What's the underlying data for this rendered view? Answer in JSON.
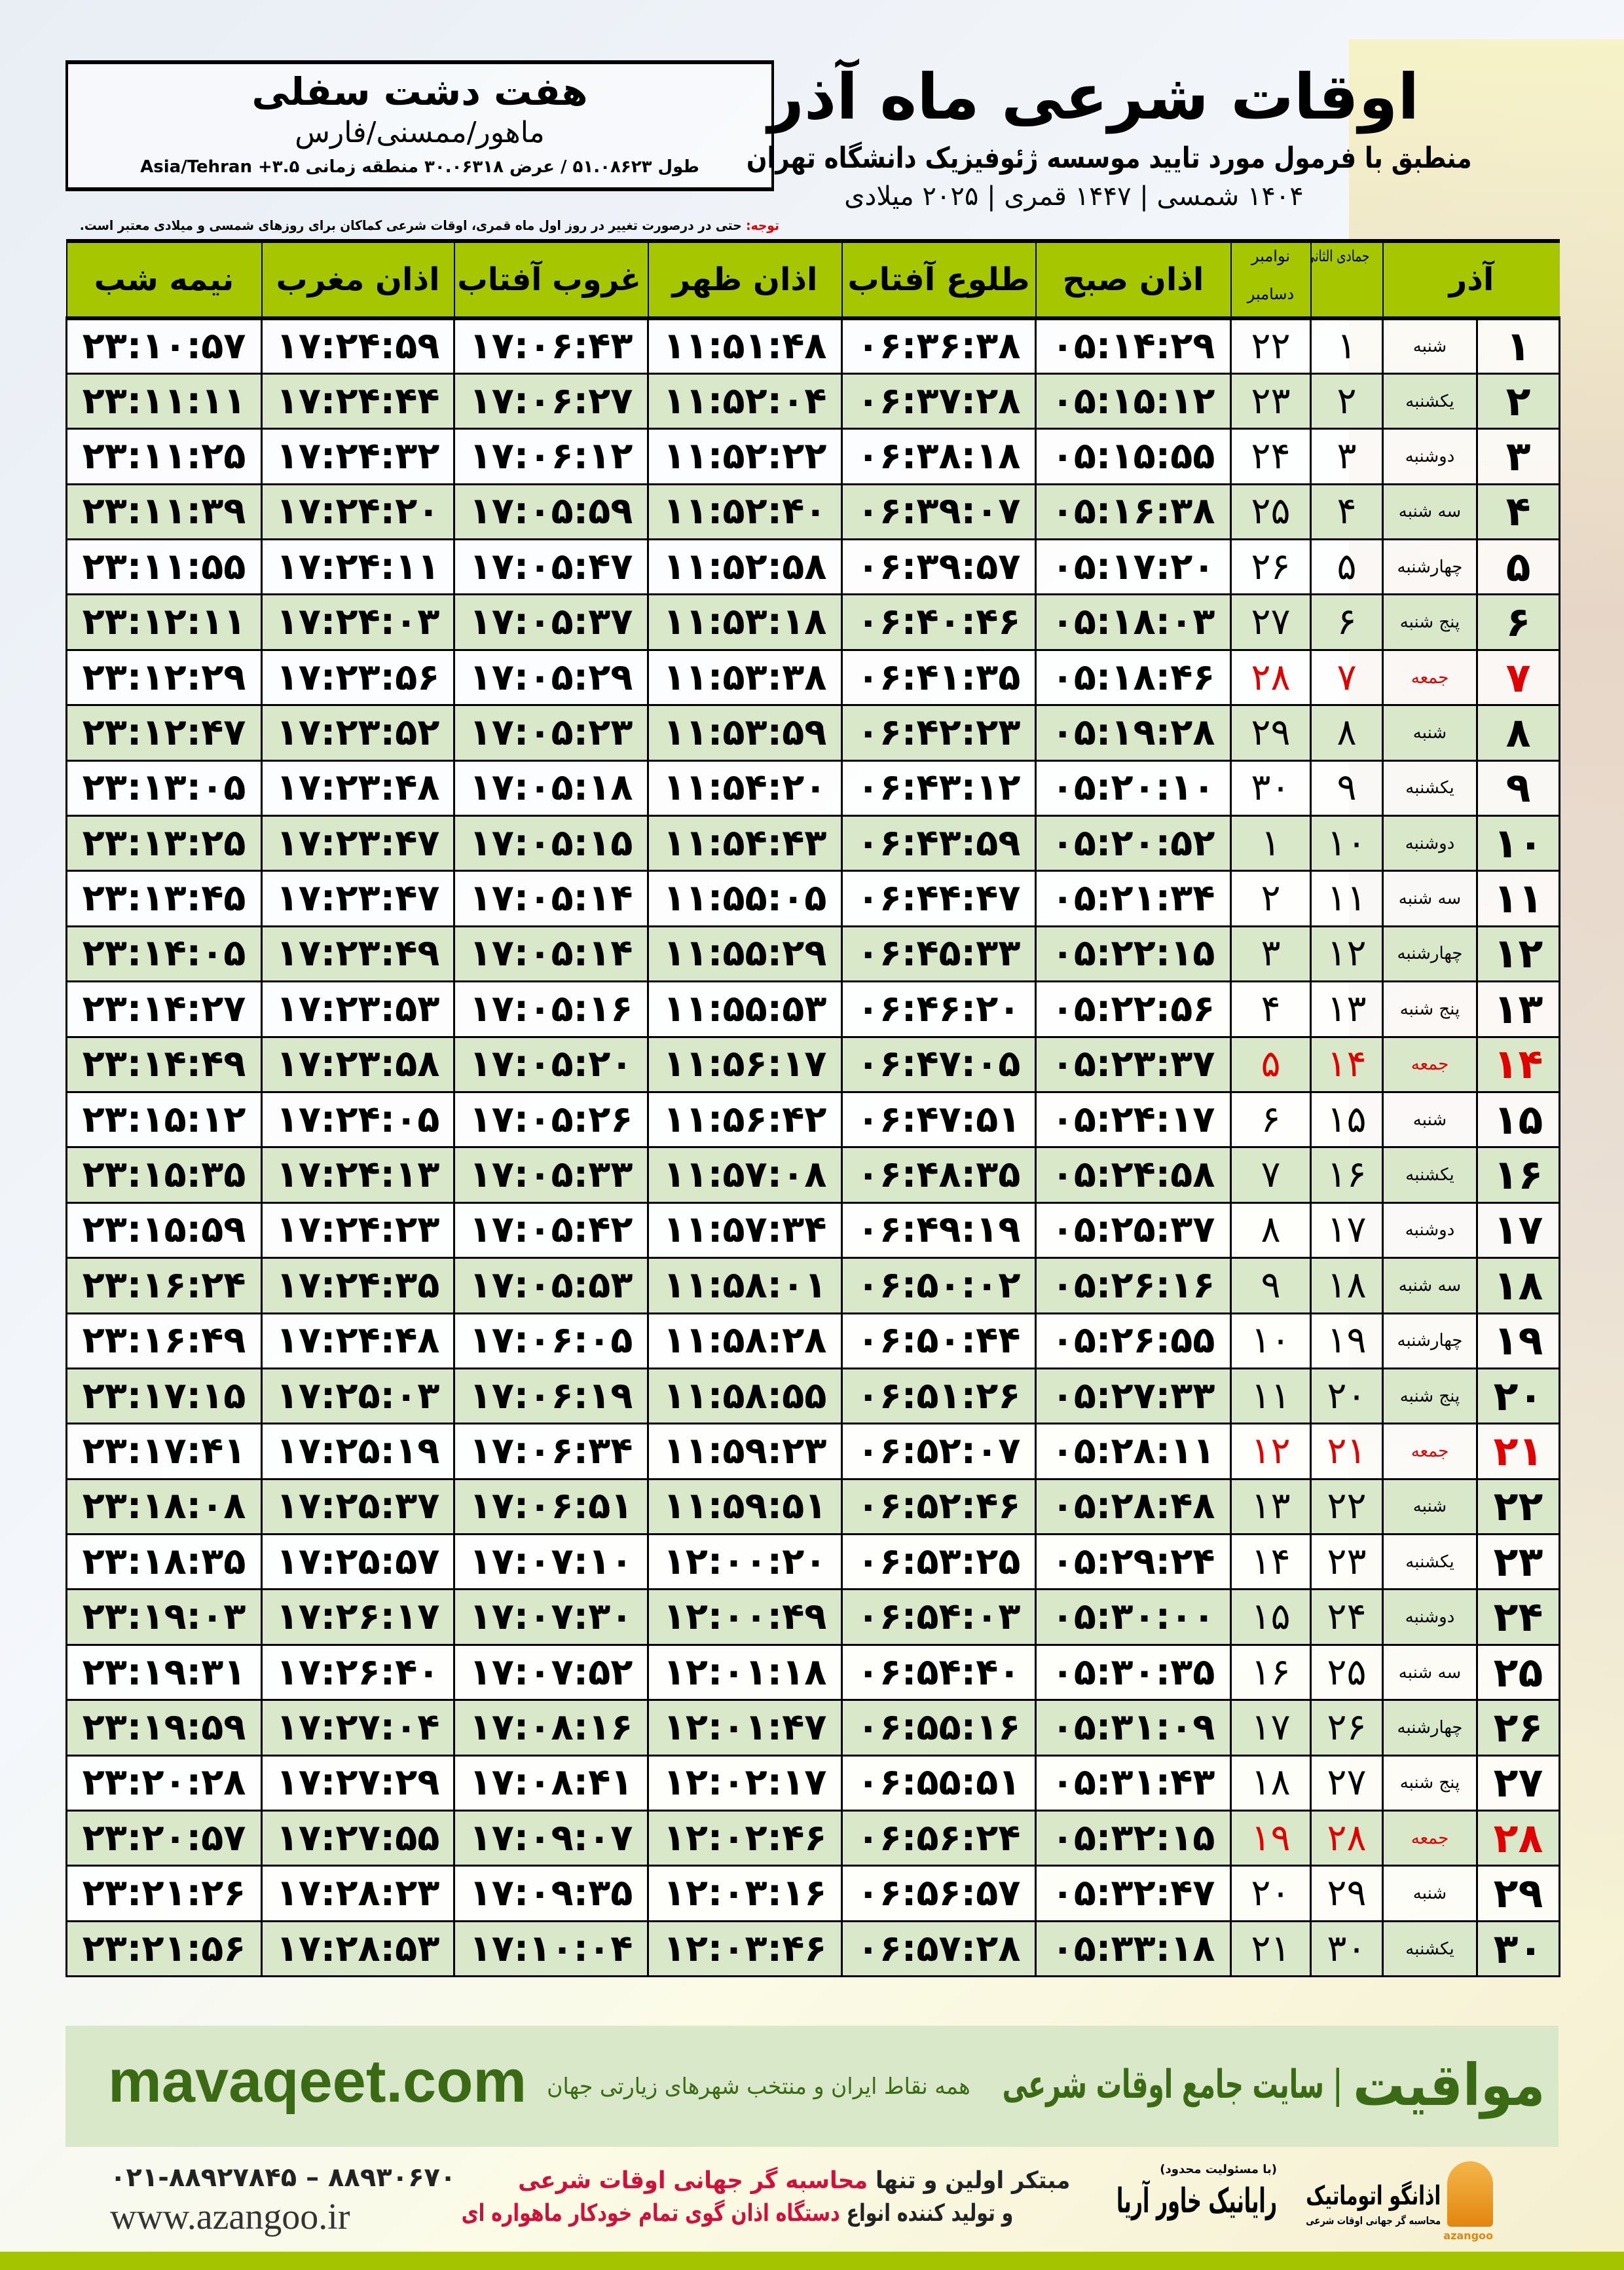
{
  "header": {
    "title": "اوقات شرعی ماه آذر",
    "subtitle": "منطبق با فرمول مورد تایید موسسه ژئوفیزیک دانشگاه تهران",
    "years": "۱۴۰۴ شمسی | ۱۴۴۷ قمری | ۲۰۲۵ میلادی"
  },
  "location": {
    "city": "هفت دشت سفلی",
    "region": "ماهور/ممسنی/فارس",
    "coords": "طول ۵۱.۰۸۶۲۳ / عرض ۳۰.۰۶۳۱۸ منطقه زمانی ۳.۵+ Asia/Tehran"
  },
  "note": {
    "label": "توجه:",
    "text": " حتی در درصورت تغییر در روز اول ماه قمری، اوقات شرعی کماکان برای روزهای شمسی و میلادی معتبر است."
  },
  "columns": {
    "month": "آذر",
    "hijri": "جمادی الثانی",
    "greg_top": "نوامبر",
    "greg_bottom": "دسامبر",
    "fajr": "اذان صبح",
    "sunrise": "طلوع آفتاب",
    "dhuhr": "اذان ظهر",
    "sunset": "غروب آفتاب",
    "maghrib": "اذان مغرب",
    "midnight": "نیمه شب"
  },
  "colors": {
    "header_green": "#a6c700",
    "row_green": "#d9e8c8",
    "friday_red": "#e00000",
    "brand_green": "#3a6b14"
  },
  "rows": [
    [
      "۱",
      "شنبه",
      "۱",
      "۲۲",
      "۰۵:۱۴:۲۹",
      "۰۶:۳۶:۳۸",
      "۱۱:۵۱:۴۸",
      "۱۷:۰۶:۴۳",
      "۱۷:۲۴:۵۹",
      "۲۳:۱۰:۵۷"
    ],
    [
      "۲",
      "یکشنبه",
      "۲",
      "۲۳",
      "۰۵:۱۵:۱۲",
      "۰۶:۳۷:۲۸",
      "۱۱:۵۲:۰۴",
      "۱۷:۰۶:۲۷",
      "۱۷:۲۴:۴۴",
      "۲۳:۱۱:۱۱"
    ],
    [
      "۳",
      "دوشنبه",
      "۳",
      "۲۴",
      "۰۵:۱۵:۵۵",
      "۰۶:۳۸:۱۸",
      "۱۱:۵۲:۲۲",
      "۱۷:۰۶:۱۲",
      "۱۷:۲۴:۳۲",
      "۲۳:۱۱:۲۵"
    ],
    [
      "۴",
      "سه شنبه",
      "۴",
      "۲۵",
      "۰۵:۱۶:۳۸",
      "۰۶:۳۹:۰۷",
      "۱۱:۵۲:۴۰",
      "۱۷:۰۵:۵۹",
      "۱۷:۲۴:۲۰",
      "۲۳:۱۱:۳۹"
    ],
    [
      "۵",
      "چهارشنبه",
      "۵",
      "۲۶",
      "۰۵:۱۷:۲۰",
      "۰۶:۳۹:۵۷",
      "۱۱:۵۲:۵۸",
      "۱۷:۰۵:۴۷",
      "۱۷:۲۴:۱۱",
      "۲۳:۱۱:۵۵"
    ],
    [
      "۶",
      "پنج شنبه",
      "۶",
      "۲۷",
      "۰۵:۱۸:۰۳",
      "۰۶:۴۰:۴۶",
      "۱۱:۵۳:۱۸",
      "۱۷:۰۵:۳۷",
      "۱۷:۲۴:۰۳",
      "۲۳:۱۲:۱۱"
    ],
    [
      "۷",
      "جمعه",
      "۷",
      "۲۸",
      "۰۵:۱۸:۴۶",
      "۰۶:۴۱:۳۵",
      "۱۱:۵۳:۳۸",
      "۱۷:۰۵:۲۹",
      "۱۷:۲۳:۵۶",
      "۲۳:۱۲:۲۹"
    ],
    [
      "۸",
      "شنبه",
      "۸",
      "۲۹",
      "۰۵:۱۹:۲۸",
      "۰۶:۴۲:۲۳",
      "۱۱:۵۳:۵۹",
      "۱۷:۰۵:۲۳",
      "۱۷:۲۳:۵۲",
      "۲۳:۱۲:۴۷"
    ],
    [
      "۹",
      "یکشنبه",
      "۹",
      "۳۰",
      "۰۵:۲۰:۱۰",
      "۰۶:۴۳:۱۲",
      "۱۱:۵۴:۲۰",
      "۱۷:۰۵:۱۸",
      "۱۷:۲۳:۴۸",
      "۲۳:۱۳:۰۵"
    ],
    [
      "۱۰",
      "دوشنبه",
      "۱۰",
      "۱",
      "۰۵:۲۰:۵۲",
      "۰۶:۴۳:۵۹",
      "۱۱:۵۴:۴۳",
      "۱۷:۰۵:۱۵",
      "۱۷:۲۳:۴۷",
      "۲۳:۱۳:۲۵"
    ],
    [
      "۱۱",
      "سه شنبه",
      "۱۱",
      "۲",
      "۰۵:۲۱:۳۴",
      "۰۶:۴۴:۴۷",
      "۱۱:۵۵:۰۵",
      "۱۷:۰۵:۱۴",
      "۱۷:۲۳:۴۷",
      "۲۳:۱۳:۴۵"
    ],
    [
      "۱۲",
      "چهارشنبه",
      "۱۲",
      "۳",
      "۰۵:۲۲:۱۵",
      "۰۶:۴۵:۳۳",
      "۱۱:۵۵:۲۹",
      "۱۷:۰۵:۱۴",
      "۱۷:۲۳:۴۹",
      "۲۳:۱۴:۰۵"
    ],
    [
      "۱۳",
      "پنج شنبه",
      "۱۳",
      "۴",
      "۰۵:۲۲:۵۶",
      "۰۶:۴۶:۲۰",
      "۱۱:۵۵:۵۳",
      "۱۷:۰۵:۱۶",
      "۱۷:۲۳:۵۳",
      "۲۳:۱۴:۲۷"
    ],
    [
      "۱۴",
      "جمعه",
      "۱۴",
      "۵",
      "۰۵:۲۳:۳۷",
      "۰۶:۴۷:۰۵",
      "۱۱:۵۶:۱۷",
      "۱۷:۰۵:۲۰",
      "۱۷:۲۳:۵۸",
      "۲۳:۱۴:۴۹"
    ],
    [
      "۱۵",
      "شنبه",
      "۱۵",
      "۶",
      "۰۵:۲۴:۱۷",
      "۰۶:۴۷:۵۱",
      "۱۱:۵۶:۴۲",
      "۱۷:۰۵:۲۶",
      "۱۷:۲۴:۰۵",
      "۲۳:۱۵:۱۲"
    ],
    [
      "۱۶",
      "یکشنبه",
      "۱۶",
      "۷",
      "۰۵:۲۴:۵۸",
      "۰۶:۴۸:۳۵",
      "۱۱:۵۷:۰۸",
      "۱۷:۰۵:۳۳",
      "۱۷:۲۴:۱۳",
      "۲۳:۱۵:۳۵"
    ],
    [
      "۱۷",
      "دوشنبه",
      "۱۷",
      "۸",
      "۰۵:۲۵:۳۷",
      "۰۶:۴۹:۱۹",
      "۱۱:۵۷:۳۴",
      "۱۷:۰۵:۴۲",
      "۱۷:۲۴:۲۳",
      "۲۳:۱۵:۵۹"
    ],
    [
      "۱۸",
      "سه شنبه",
      "۱۸",
      "۹",
      "۰۵:۲۶:۱۶",
      "۰۶:۵۰:۰۲",
      "۱۱:۵۸:۰۱",
      "۱۷:۰۵:۵۳",
      "۱۷:۲۴:۳۵",
      "۲۳:۱۶:۲۴"
    ],
    [
      "۱۹",
      "چهارشنبه",
      "۱۹",
      "۱۰",
      "۰۵:۲۶:۵۵",
      "۰۶:۵۰:۴۴",
      "۱۱:۵۸:۲۸",
      "۱۷:۰۶:۰۵",
      "۱۷:۲۴:۴۸",
      "۲۳:۱۶:۴۹"
    ],
    [
      "۲۰",
      "پنج شنبه",
      "۲۰",
      "۱۱",
      "۰۵:۲۷:۳۳",
      "۰۶:۵۱:۲۶",
      "۱۱:۵۸:۵۵",
      "۱۷:۰۶:۱۹",
      "۱۷:۲۵:۰۳",
      "۲۳:۱۷:۱۵"
    ],
    [
      "۲۱",
      "جمعه",
      "۲۱",
      "۱۲",
      "۰۵:۲۸:۱۱",
      "۰۶:۵۲:۰۷",
      "۱۱:۵۹:۲۳",
      "۱۷:۰۶:۳۴",
      "۱۷:۲۵:۱۹",
      "۲۳:۱۷:۴۱"
    ],
    [
      "۲۲",
      "شنبه",
      "۲۲",
      "۱۳",
      "۰۵:۲۸:۴۸",
      "۰۶:۵۲:۴۶",
      "۱۱:۵۹:۵۱",
      "۱۷:۰۶:۵۱",
      "۱۷:۲۵:۳۷",
      "۲۳:۱۸:۰۸"
    ],
    [
      "۲۳",
      "یکشنبه",
      "۲۳",
      "۱۴",
      "۰۵:۲۹:۲۴",
      "۰۶:۵۳:۲۵",
      "۱۲:۰۰:۲۰",
      "۱۷:۰۷:۱۰",
      "۱۷:۲۵:۵۷",
      "۲۳:۱۸:۳۵"
    ],
    [
      "۲۴",
      "دوشنبه",
      "۲۴",
      "۱۵",
      "۰۵:۳۰:۰۰",
      "۰۶:۵۴:۰۳",
      "۱۲:۰۰:۴۹",
      "۱۷:۰۷:۳۰",
      "۱۷:۲۶:۱۷",
      "۲۳:۱۹:۰۳"
    ],
    [
      "۲۵",
      "سه شنبه",
      "۲۵",
      "۱۶",
      "۰۵:۳۰:۳۵",
      "۰۶:۵۴:۴۰",
      "۱۲:۰۱:۱۸",
      "۱۷:۰۷:۵۲",
      "۱۷:۲۶:۴۰",
      "۲۳:۱۹:۳۱"
    ],
    [
      "۲۶",
      "چهارشنبه",
      "۲۶",
      "۱۷",
      "۰۵:۳۱:۰۹",
      "۰۶:۵۵:۱۶",
      "۱۲:۰۱:۴۷",
      "۱۷:۰۸:۱۶",
      "۱۷:۲۷:۰۴",
      "۲۳:۱۹:۵۹"
    ],
    [
      "۲۷",
      "پنج شنبه",
      "۲۷",
      "۱۸",
      "۰۵:۳۱:۴۳",
      "۰۶:۵۵:۵۱",
      "۱۲:۰۲:۱۷",
      "۱۷:۰۸:۴۱",
      "۱۷:۲۷:۲۹",
      "۲۳:۲۰:۲۸"
    ],
    [
      "۲۸",
      "جمعه",
      "۲۸",
      "۱۹",
      "۰۵:۳۲:۱۵",
      "۰۶:۵۶:۲۴",
      "۱۲:۰۲:۴۶",
      "۱۷:۰۹:۰۷",
      "۱۷:۲۷:۵۵",
      "۲۳:۲۰:۵۷"
    ],
    [
      "۲۹",
      "شنبه",
      "۲۹",
      "۲۰",
      "۰۵:۳۲:۴۷",
      "۰۶:۵۶:۵۷",
      "۱۲:۰۳:۱۶",
      "۱۷:۰۹:۳۵",
      "۱۷:۲۸:۲۳",
      "۲۳:۲۱:۲۶"
    ],
    [
      "۳۰",
      "یکشنبه",
      "۳۰",
      "۲۱",
      "۰۵:۳۳:۱۸",
      "۰۶:۵۷:۲۸",
      "۱۲:۰۳:۴۶",
      "۱۷:۱۰:۰۴",
      "۱۷:۲۸:۵۳",
      "۲۳:۲۱:۵۶"
    ]
  ],
  "friday_label": "جمعه",
  "banner": {
    "site": "mavaqeet.com",
    "slogan": "همه نقاط ایران و منتخب شهرهای زیارتی جهان",
    "main": "| سایت جامع اوقات شرعی",
    "brand": "مواقیت"
  },
  "footer": {
    "phone": "۰۲۱-۸۸۹۲۷۸۴۵ – ۸۸۹۳۰۶۷۰",
    "web": "www.azangoo.ir",
    "promo_1a": "مبتکر اولین و تنها ",
    "promo_1b": "محاسبه گر جهانی اوقات شرعی",
    "promo_2a": "و تولید کننده انواع ",
    "promo_2b": "دستگاه اذان گوی تمام خودکار ماهواره ای",
    "logo1_small": "(با مسئولیت محدود)",
    "logo1": "رایانیک خاور آریا",
    "logo2": "اذانگو اتوماتیک",
    "logo2_sub": "محاسبه گر جهانی اوقات شرعی",
    "logo2_latin": "azangoo"
  }
}
